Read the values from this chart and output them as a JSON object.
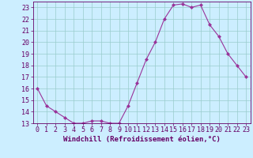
{
  "x": [
    0,
    1,
    2,
    3,
    4,
    5,
    6,
    7,
    8,
    9,
    10,
    11,
    12,
    13,
    14,
    15,
    16,
    17,
    18,
    19,
    20,
    21,
    22,
    23
  ],
  "y": [
    16,
    14.5,
    14,
    13.5,
    13,
    13,
    13.2,
    13.2,
    13,
    13,
    14.5,
    16.5,
    18.5,
    20,
    22,
    23.2,
    23.3,
    23,
    23.2,
    21.5,
    20.5,
    19,
    18,
    17
  ],
  "line_color": "#993399",
  "marker": "D",
  "marker_size": 2.0,
  "background_color": "#cceeff",
  "grid_color": "#99cccc",
  "xlabel": "Windchill (Refroidissement éolien,°C)",
  "xlabel_fontsize": 6.5,
  "tick_fontsize": 6.0,
  "ylim": [
    13,
    23.5
  ],
  "xlim": [
    -0.5,
    23.5
  ],
  "yticks": [
    13,
    14,
    15,
    16,
    17,
    18,
    19,
    20,
    21,
    22,
    23
  ],
  "xticks": [
    0,
    1,
    2,
    3,
    4,
    5,
    6,
    7,
    8,
    9,
    10,
    11,
    12,
    13,
    14,
    15,
    16,
    17,
    18,
    19,
    20,
    21,
    22,
    23
  ],
  "spine_color": "#660066",
  "label_color": "#660066"
}
